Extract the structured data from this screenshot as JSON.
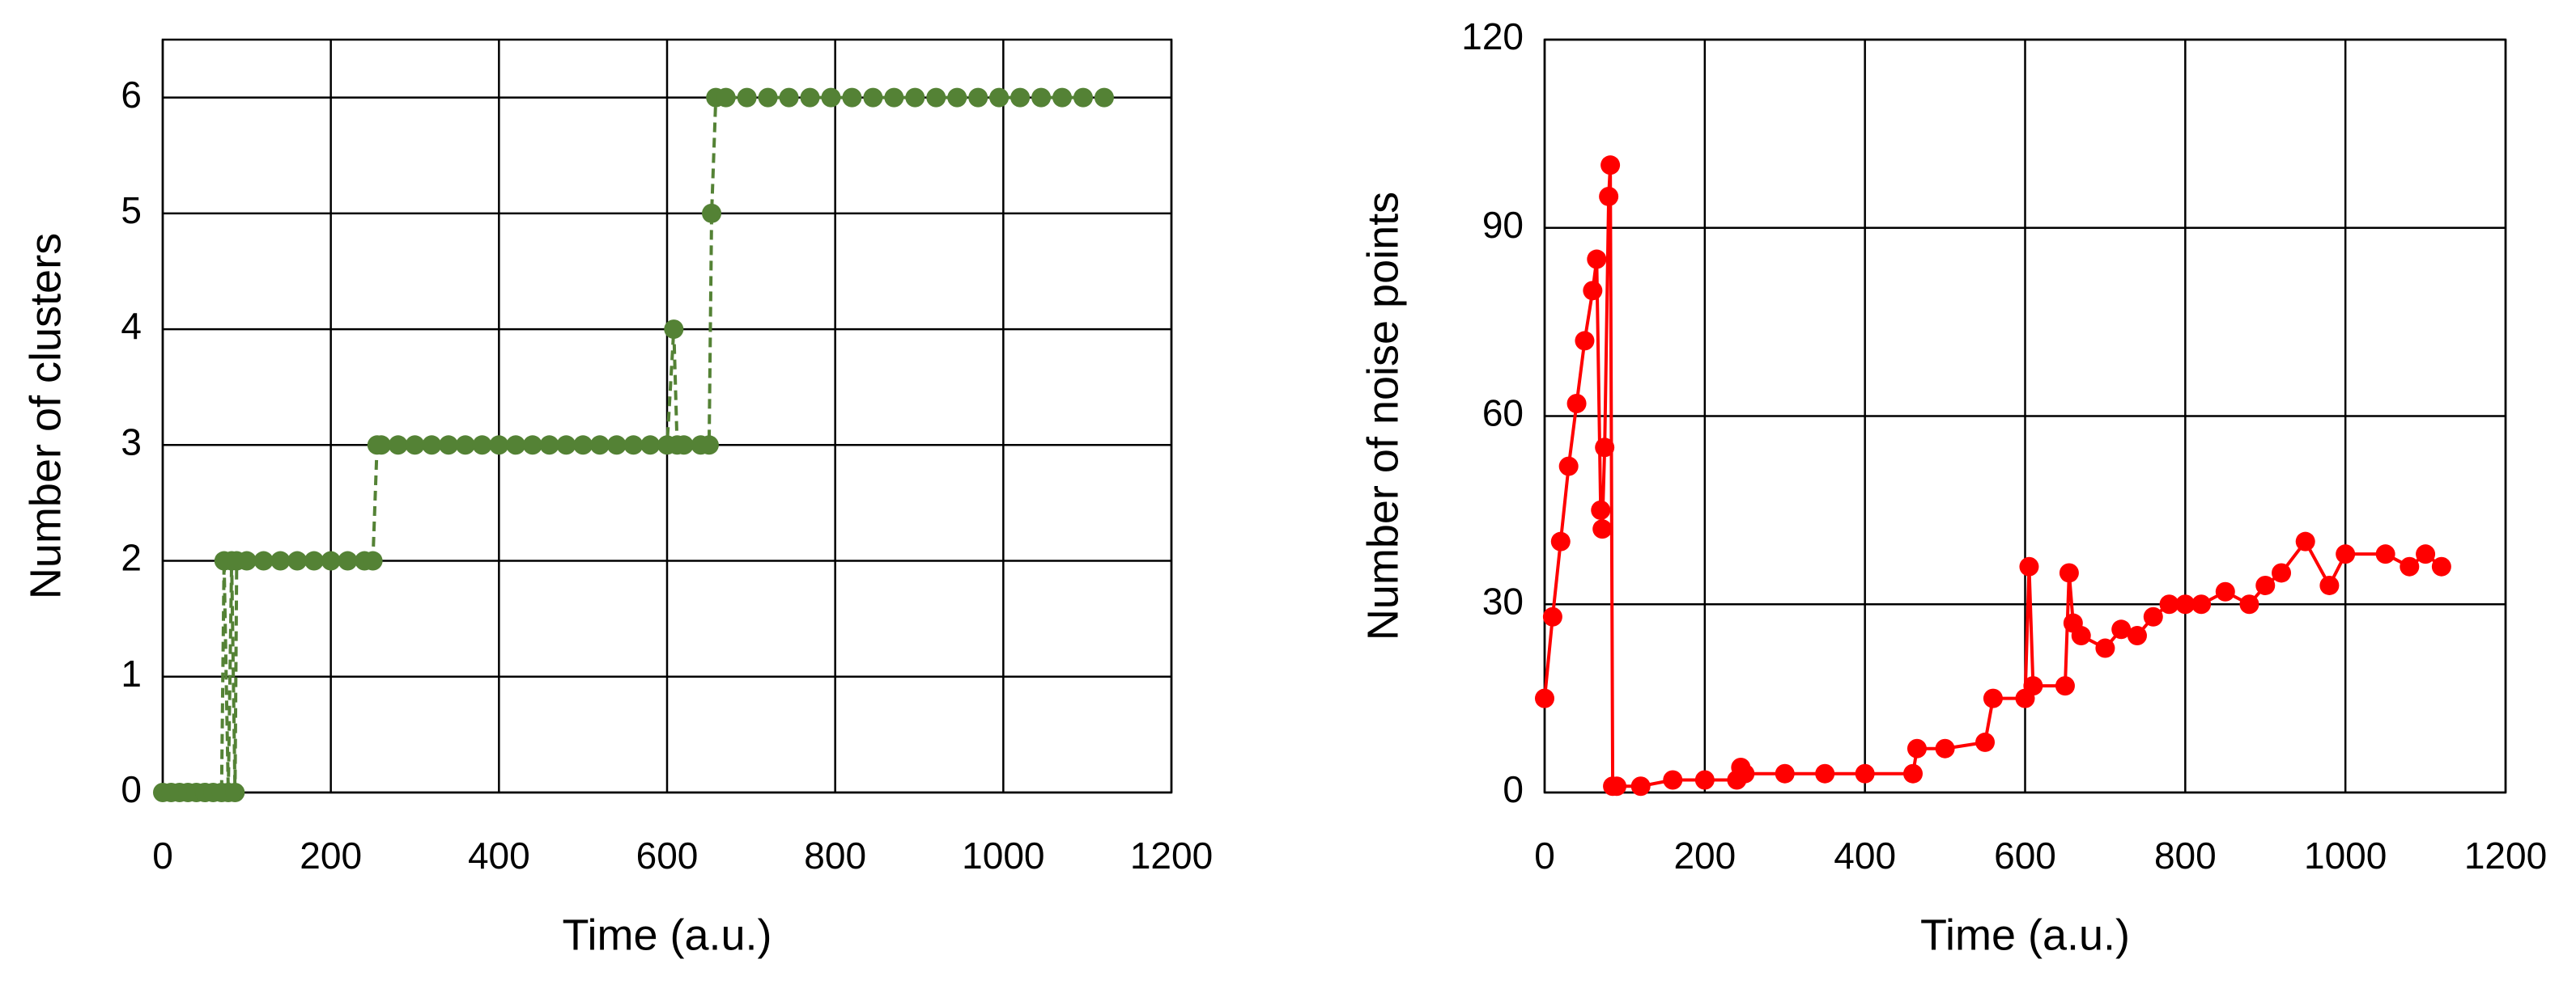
{
  "chart_data": [
    {
      "type": "line",
      "x_label": "Time (a.u.)",
      "y_label": "Number of clusters",
      "x": [
        0,
        10,
        20,
        30,
        40,
        50,
        60,
        70,
        73,
        78,
        82,
        86,
        88,
        100,
        120,
        140,
        160,
        180,
        200,
        220,
        240,
        250,
        255,
        260,
        280,
        300,
        320,
        340,
        360,
        380,
        400,
        420,
        440,
        460,
        480,
        500,
        520,
        540,
        560,
        580,
        600,
        608,
        612,
        620,
        640,
        650,
        653,
        658,
        670,
        695,
        720,
        745,
        770,
        795,
        820,
        845,
        870,
        895,
        920,
        945,
        970,
        995,
        1020,
        1045,
        1070,
        1095,
        1120
      ],
      "series": [
        {
          "color": "#548235",
          "line_style": "dashed",
          "marker": true,
          "values": [
            0,
            0,
            0,
            0,
            0,
            0,
            0,
            0,
            2,
            0,
            2,
            0,
            2,
            2,
            2,
            2,
            2,
            2,
            2,
            2,
            2,
            2,
            3,
            3,
            3,
            3,
            3,
            3,
            3,
            3,
            3,
            3,
            3,
            3,
            3,
            3,
            3,
            3,
            3,
            3,
            3,
            4,
            3,
            3,
            3,
            3,
            5,
            6,
            6,
            6,
            6,
            6,
            6,
            6,
            6,
            6,
            6,
            6,
            6,
            6,
            6,
            6,
            6,
            6,
            6,
            6,
            6
          ]
        }
      ],
      "xlim": [
        0,
        1200
      ],
      "xticks": [
        0,
        200,
        400,
        600,
        800,
        1000,
        1200
      ],
      "ylim": [
        0,
        6.5
      ],
      "yticks": [
        0,
        1,
        2,
        3,
        4,
        5,
        6
      ],
      "grid": true
    },
    {
      "type": "line",
      "x_label": "Time (a.u.)",
      "y_label": "Number of noise points",
      "x": [
        0,
        10,
        20,
        30,
        40,
        50,
        60,
        65,
        70,
        72,
        75,
        80,
        82,
        85,
        90,
        120,
        160,
        200,
        240,
        245,
        250,
        300,
        350,
        400,
        460,
        465,
        500,
        550,
        560,
        600,
        605,
        610,
        650,
        655,
        660,
        670,
        700,
        720,
        740,
        760,
        780,
        800,
        820,
        850,
        880,
        900,
        920,
        950,
        980,
        1000,
        1050,
        1080,
        1100,
        1120
      ],
      "series": [
        {
          "color": "#ff0000",
          "line_style": "solid",
          "marker": true,
          "values": [
            15,
            28,
            40,
            52,
            62,
            72,
            80,
            85,
            45,
            42,
            55,
            95,
            100,
            1,
            1,
            1,
            2,
            2,
            2,
            4,
            3,
            3,
            3,
            3,
            3,
            7,
            7,
            8,
            15,
            15,
            36,
            17,
            17,
            35,
            27,
            25,
            23,
            26,
            25,
            28,
            30,
            30,
            30,
            32,
            30,
            33,
            35,
            40,
            33,
            38,
            38,
            36,
            38,
            36
          ]
        }
      ],
      "xlim": [
        0,
        1200
      ],
      "xticks": [
        0,
        200,
        400,
        600,
        800,
        1000,
        1200
      ],
      "ylim": [
        0,
        120
      ],
      "yticks": [
        0,
        30,
        60,
        90,
        120
      ],
      "grid": true
    }
  ]
}
